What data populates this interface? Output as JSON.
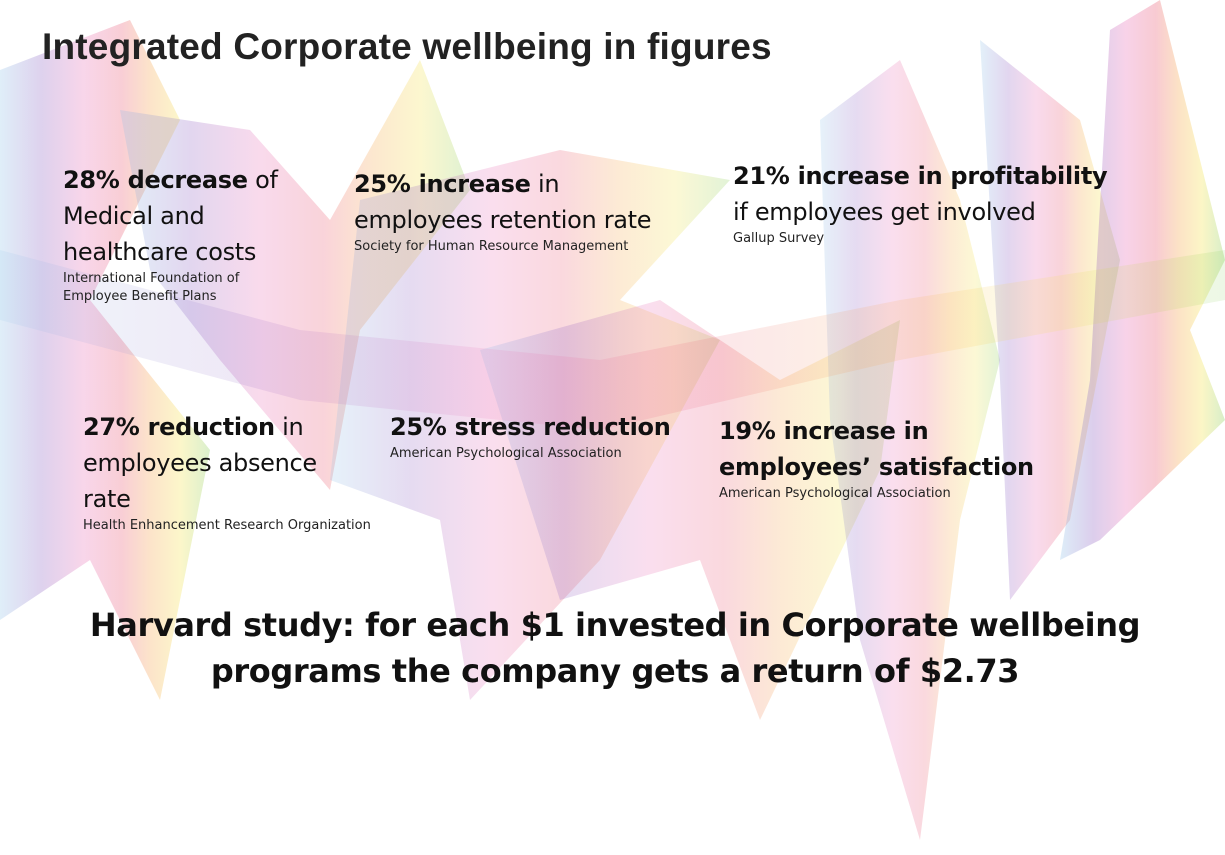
{
  "title": "Integrated Corporate wellbeing in figures",
  "stats": {
    "medical": {
      "bold": "28% decrease",
      "rest1": " of",
      "line2": "Medical and",
      "line3": "healthcare costs",
      "source1": "International Foundation of",
      "source2": "Employee Benefit Plans"
    },
    "retention": {
      "bold": "25% increase",
      "rest1": " in",
      "line2": "employees retention rate",
      "source": "Society for Human Resource Management"
    },
    "profitability": {
      "bold": "21% increase in profitability",
      "line2": "if employees get involved",
      "source": "Gallup Survey"
    },
    "absence": {
      "bold": "27% reduction",
      "rest1": " in",
      "line2": "employees absence",
      "line3": "rate",
      "source": "Health Enhancement Research Organization"
    },
    "stress": {
      "bold": "25% stress reduction",
      "source": "American Psychological Association"
    },
    "satisfaction": {
      "bold1": "19% increase in",
      "bold2": "employees’ satisfaction",
      "source": "American Psychological Association"
    }
  },
  "harvard": {
    "line1": "Harvard study: for each $1 invested in Corporate wellbeing",
    "line2": "programs the company gets a return of $2.73"
  },
  "colors": {
    "blue": "#8ec3e8",
    "purple": "#8a5cc0",
    "pink": "#e86bb4",
    "red": "#e8506a",
    "orange": "#f5a040",
    "yellow": "#f3e040",
    "green": "#7cc84a"
  }
}
